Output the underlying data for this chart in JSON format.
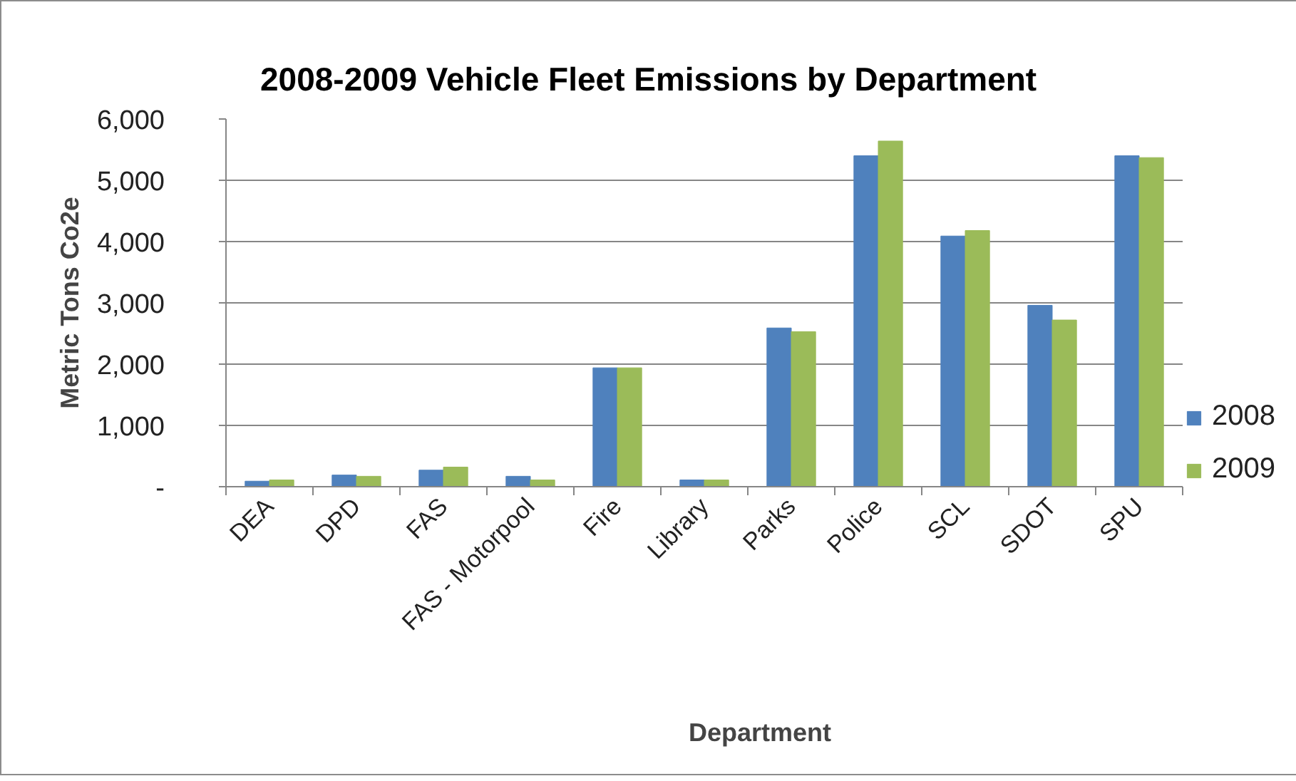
{
  "chart_data": {
    "type": "bar",
    "title": "2008-2009 Vehicle Fleet Emissions by Department",
    "xlabel": "Department",
    "ylabel": "Metric Tons Co2e",
    "categories": [
      "DEA",
      "DPD",
      "FAS",
      "FAS - Motorpool",
      "Fire",
      "Library",
      "Parks",
      "Police",
      "SCL",
      "SDOT",
      "SPU"
    ],
    "series": [
      {
        "name": "2008",
        "color": "#4f81bd",
        "values": [
          90,
          190,
          270,
          170,
          1940,
          110,
          2590,
          5400,
          4090,
          2960,
          5400
        ]
      },
      {
        "name": "2009",
        "color": "#9bbb59",
        "values": [
          110,
          170,
          320,
          110,
          1940,
          110,
          2530,
          5640,
          4180,
          2720,
          5370
        ]
      }
    ],
    "ylim": [
      0,
      6000
    ],
    "yticks": [
      {
        "value": 0,
        "label": "-"
      },
      {
        "value": 1000,
        "label": "1,000"
      },
      {
        "value": 2000,
        "label": "2,000"
      },
      {
        "value": 3000,
        "label": "3,000"
      },
      {
        "value": 4000,
        "label": "4,000"
      },
      {
        "value": 5000,
        "label": "5,000"
      },
      {
        "value": 6000,
        "label": "6,000"
      }
    ],
    "grid": "y",
    "legend": "right"
  }
}
